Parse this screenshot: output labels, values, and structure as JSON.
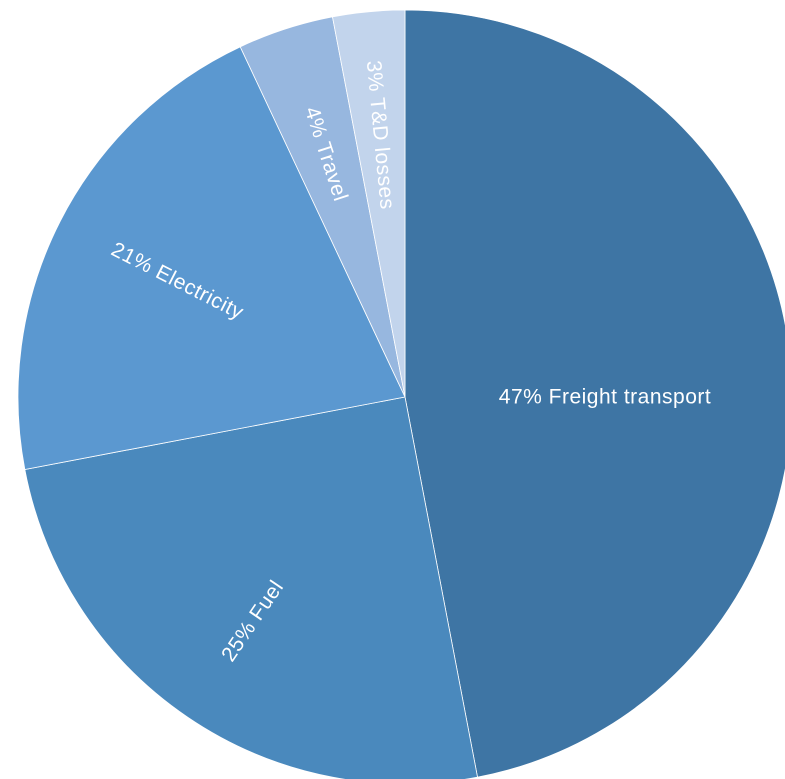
{
  "chart_data": {
    "type": "pie",
    "title": "",
    "start_angle_deg": 0,
    "direction": "clockwise",
    "slices": [
      {
        "label": "47% Freight transport",
        "category": "Freight transport",
        "value": 47,
        "color": "#3e75a4"
      },
      {
        "label": "25% Fuel",
        "category": "Fuel",
        "value": 25,
        "color": "#4a89bd"
      },
      {
        "label": "21% Electricity",
        "category": "Electricity",
        "value": 21,
        "color": "#5b98d0"
      },
      {
        "label": "4% Travel",
        "category": "Travel",
        "value": 4,
        "color": "#97b7df"
      },
      {
        "label": "3% T&D losses",
        "category": "T&D losses",
        "value": 3,
        "color": "#c2d4ec"
      }
    ]
  }
}
